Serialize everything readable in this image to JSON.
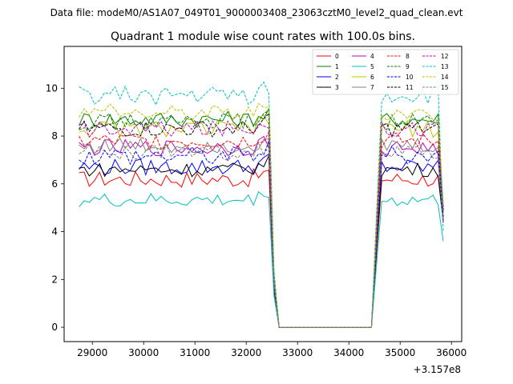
{
  "chart_data": {
    "type": "line",
    "suptitle": "Data file: modeM0/AS1A07_049T01_9000003408_23063cztM0_level2_quad_clean.evt",
    "title": "Quadrant 1 module wise count rates with 100.0s bins.",
    "xlabel": "",
    "ylabel": "",
    "x_offset_label": "+3.157e8",
    "xlim": [
      28450,
      36200
    ],
    "ylim": [
      -0.6,
      11.75
    ],
    "x_ticks": [
      29000,
      30000,
      31000,
      32000,
      33000,
      34000,
      35000,
      36000
    ],
    "y_ticks": [
      0,
      2,
      4,
      6,
      8,
      10
    ],
    "grid": false,
    "legend": {
      "placement": "top-right",
      "ncol": 4
    },
    "bin_width": 100,
    "segments": [
      {
        "x_start": 28740,
        "x_end": 32540,
        "bins": 39
      },
      {
        "x_start": 32640,
        "x_end": 34440,
        "bins": 19
      },
      {
        "x_start": 34540,
        "x_end": 35840,
        "bins": 14
      }
    ],
    "series": [
      {
        "name": "0",
        "color": "#ff0000",
        "dash": "solid",
        "level": 6.2,
        "amp": 0.35,
        "drop": 4.8
      },
      {
        "name": "1",
        "color": "#008000",
        "dash": "solid",
        "level": 8.7,
        "amp": 0.35,
        "drop": 4.4
      },
      {
        "name": "2",
        "color": "#0000ff",
        "dash": "solid",
        "level": 6.7,
        "amp": 0.35,
        "drop": 4.6
      },
      {
        "name": "3",
        "color": "#000000",
        "dash": "solid",
        "level": 6.6,
        "amp": 0.3,
        "drop": 4.4
      },
      {
        "name": "4",
        "color": "#bf00bf",
        "dash": "solid",
        "level": 7.5,
        "amp": 0.35,
        "drop": 4.5
      },
      {
        "name": "5",
        "color": "#00bfbf",
        "dash": "solid",
        "level": 5.3,
        "amp": 0.3,
        "drop": 3.6
      },
      {
        "name": "6",
        "color": "#bfbf00",
        "dash": "solid",
        "level": 8.3,
        "amp": 0.35,
        "drop": 4.7
      },
      {
        "name": "7",
        "color": "#808080",
        "dash": "solid",
        "level": 7.6,
        "amp": 0.35,
        "drop": 4.5
      },
      {
        "name": "8",
        "color": "#ff0000",
        "dash": "dashed",
        "level": 7.8,
        "amp": 0.35,
        "drop": 4.6
      },
      {
        "name": "9",
        "color": "#008000",
        "dash": "dashed",
        "level": 8.6,
        "amp": 0.35,
        "drop": 4.8
      },
      {
        "name": "10",
        "color": "#0000ff",
        "dash": "dashed",
        "level": 7.2,
        "amp": 0.4,
        "drop": 4.5
      },
      {
        "name": "11",
        "color": "#000000",
        "dash": "dashed",
        "level": 8.3,
        "amp": 0.35,
        "drop": 4.9
      },
      {
        "name": "12",
        "color": "#bf00bf",
        "dash": "dashed",
        "level": 8.3,
        "amp": 0.35,
        "drop": 5.0
      },
      {
        "name": "13",
        "color": "#00bfbf",
        "dash": "dashed",
        "level": 9.7,
        "amp": 0.4,
        "drop": 4.0
      },
      {
        "name": "14",
        "color": "#bfbf00",
        "dash": "dashed",
        "level": 9.0,
        "amp": 0.35,
        "drop": 5.2
      },
      {
        "name": "15",
        "color": "#808080",
        "dash": "dashed",
        "level": 7.3,
        "amp": 0.35,
        "drop": 4.3
      }
    ]
  }
}
